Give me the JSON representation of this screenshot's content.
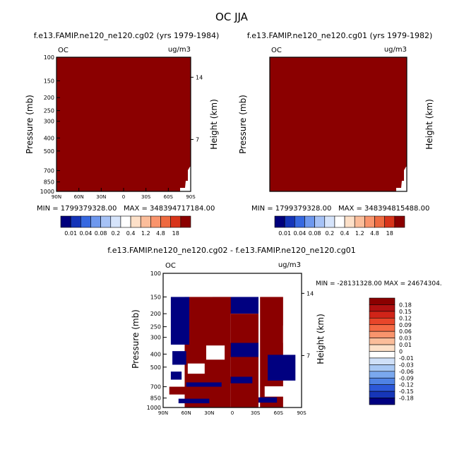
{
  "figure": {
    "title": "OC JJA"
  },
  "chart_data": [
    {
      "type": "heatmap",
      "panel": "top-left",
      "title": "f.e13.FAMIP.ne120_ne120.cg02 (yrs 1979-1984)",
      "variable": "OC",
      "units": "ug/m3",
      "xlabel": "",
      "ylabel": "Pressure (mb)",
      "right_label": "Height (km)",
      "x_ticks": [
        "90N",
        "60N",
        "30N",
        "0",
        "30S",
        "60S",
        "90S"
      ],
      "y_ticks": [
        100,
        150,
        200,
        250,
        300,
        400,
        500,
        700,
        850,
        1000
      ],
      "y_ticks_right": [
        14,
        7
      ],
      "ylim": [
        1000,
        100
      ],
      "min_label": "MIN = 1799379328.00",
      "max_label": "MAX = 348394717184.00",
      "fill_color": "#8b0000"
    },
    {
      "type": "heatmap",
      "panel": "top-right",
      "title": "f.e13.FAMIP.ne120_ne120.cg01 (yrs 1979-1982)",
      "variable": "OC",
      "units": "ug/m3",
      "xlabel": "",
      "ylabel": "Pressure (mb)",
      "right_label": "Height (km)",
      "x_ticks": [
        "90N",
        "60N",
        "30N",
        "0",
        "30S",
        "60S",
        "90S"
      ],
      "y_ticks": [
        100,
        150,
        200,
        250,
        300,
        400,
        500,
        700,
        850,
        1000
      ],
      "y_ticks_right": [
        14,
        7
      ],
      "ylim": [
        1000,
        100
      ],
      "min_label": "MIN = 1799379328.00",
      "max_label": "MAX = 348394815488.00",
      "fill_color": "#8b0000"
    },
    {
      "type": "heatmap",
      "panel": "bottom-difference",
      "title": "f.e13.FAMIP.ne120_ne120.cg02 - f.e13.FAMIP.ne120_ne120.cg01",
      "variable": "OC",
      "units": "ug/m3",
      "xlabel": "",
      "ylabel": "Pressure (mb)",
      "right_label": "Height (km)",
      "x_ticks": [
        "90N",
        "60N",
        "30N",
        "0",
        "30S",
        "60S",
        "90S"
      ],
      "y_ticks": [
        100,
        150,
        200,
        250,
        300,
        400,
        500,
        700,
        850,
        1000
      ],
      "y_ticks_right": [
        14,
        7
      ],
      "ylim": [
        1000,
        100
      ],
      "minmax_label": "MIN = -28131328.00   MAX = 24674304.",
      "colors": {
        "positive": "#8b0000",
        "negative": "#000080",
        "zero": "#ffffff"
      },
      "regions": [
        {
          "sign": "pos",
          "lat": [
            -66,
            -36
          ],
          "p": [
            150,
            1000
          ]
        },
        {
          "sign": "neg",
          "lat": [
            -82,
            -46
          ],
          "p": [
            405,
            630
          ]
        },
        {
          "sign": "zero",
          "lat": [
            -82,
            -66
          ],
          "p": [
            245,
            330
          ]
        },
        {
          "sign": "zero",
          "lat": [
            -68,
            -42
          ],
          "p": [
            695,
            830
          ]
        },
        {
          "sign": "neg",
          "lat": [
            -58,
            -28
          ],
          "p": [
            840,
            920
          ]
        },
        {
          "sign": "neg",
          "lat": [
            -34,
            26
          ],
          "p": [
            150,
            200
          ]
        },
        {
          "sign": "pos",
          "lat": [
            -34,
            2
          ],
          "p": [
            200,
            1000
          ]
        },
        {
          "sign": "neg",
          "lat": [
            -34,
            14
          ],
          "p": [
            330,
            420
          ]
        },
        {
          "sign": "neg",
          "lat": [
            -26,
            26
          ],
          "p": [
            590,
            660
          ]
        },
        {
          "sign": "pos",
          "lat": [
            2,
            62
          ],
          "p": [
            150,
            1000
          ]
        },
        {
          "sign": "zero",
          "lat": [
            10,
            34
          ],
          "p": [
            345,
            440
          ]
        },
        {
          "sign": "neg",
          "lat": [
            14,
            60
          ],
          "p": [
            650,
            700
          ]
        },
        {
          "sign": "neg",
          "lat": [
            30,
            70
          ],
          "p": [
            860,
            930
          ]
        },
        {
          "sign": "zero",
          "lat": [
            36,
            58
          ],
          "p": [
            470,
            560
          ]
        },
        {
          "sign": "neg",
          "lat": [
            56,
            80
          ],
          "p": [
            150,
            340
          ]
        },
        {
          "sign": "neg",
          "lat": [
            60,
            78
          ],
          "p": [
            380,
            480
          ]
        },
        {
          "sign": "neg",
          "lat": [
            66,
            80
          ],
          "p": [
            540,
            620
          ]
        },
        {
          "sign": "pos",
          "lat": [
            60,
            82
          ],
          "p": [
            700,
            800
          ]
        }
      ],
      "legend": {
        "labels": [
          "0.18",
          "0.15",
          "0.12",
          "0.09",
          "0.06",
          "0.03",
          "0.01",
          "0",
          "-0.01",
          "-0.03",
          "-0.06",
          "-0.09",
          "-0.12",
          "-0.15",
          "-0.18"
        ],
        "colors": [
          "#8b0000",
          "#b01010",
          "#d02418",
          "#e8462a",
          "#f46a44",
          "#f9946c",
          "#fbbd9a",
          "#fde0c8",
          "#ffffff",
          "#cfe0f8",
          "#a8c8f4",
          "#7aa8ee",
          "#4f82e4",
          "#2c58d8",
          "#1636b8",
          "#000080"
        ],
        "orientation": "vertical"
      }
    }
  ],
  "shared_colorbar": {
    "labels": [
      "0.01",
      "0.04",
      "0.08",
      "0.2",
      "0.4",
      "1.2",
      "4.8",
      "18"
    ],
    "colors": [
      "#00007c",
      "#1434b8",
      "#3668e0",
      "#6e98ee",
      "#a6c2f6",
      "#d6e4fb",
      "#ffffff",
      "#fde0c8",
      "#fbbd9a",
      "#f9946c",
      "#ee6a40",
      "#d8341a",
      "#8b0000"
    ]
  }
}
